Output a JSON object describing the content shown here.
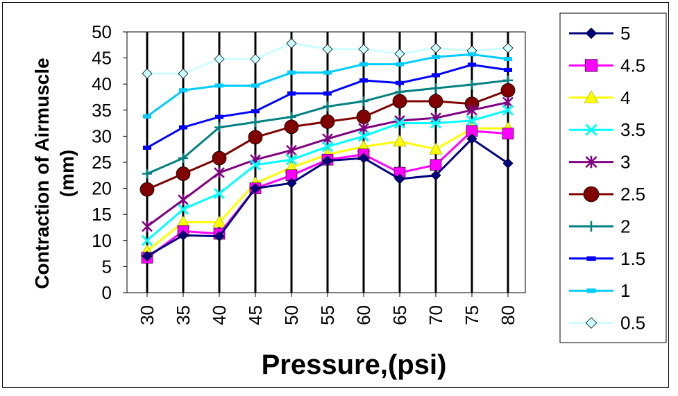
{
  "chart_data": {
    "type": "line",
    "xlabel": "Pressure,(psi)",
    "ylabel": "Contraction of Airmuscle (mm)",
    "ylabel_lines": [
      "Contraction of Airmuscle",
      "(mm)"
    ],
    "x": [
      30,
      35,
      40,
      45,
      50,
      55,
      60,
      65,
      70,
      75,
      80
    ],
    "xticks": [
      "30",
      "35",
      "40",
      "45",
      "50",
      "55",
      "60",
      "65",
      "70",
      "75",
      "80"
    ],
    "ylim": [
      0,
      50
    ],
    "yticks": [
      0,
      5,
      10,
      15,
      20,
      25,
      30,
      35,
      40,
      45,
      50
    ],
    "grid": "vertical",
    "legend_position": "right",
    "series": [
      {
        "name": "5",
        "color": "#000080",
        "marker": "diamond",
        "values": [
          7,
          11,
          10.8,
          20,
          21,
          25.3,
          25.8,
          21.8,
          22.5,
          29.5,
          24.8
        ]
      },
      {
        "name": "4.5",
        "color": "#FF00FF",
        "marker": "square",
        "values": [
          6.7,
          11.8,
          11.3,
          20,
          22.5,
          25.5,
          26.5,
          23,
          24.5,
          31,
          30.5
        ]
      },
      {
        "name": "4",
        "color": "#FFFF00",
        "marker": "triangle",
        "values": [
          8,
          13.5,
          13.5,
          21,
          24,
          26.5,
          28,
          29,
          27.5,
          31.5,
          31.5
        ]
      },
      {
        "name": "3.5",
        "color": "#00FFFF",
        "marker": "x",
        "values": [
          10,
          16,
          19,
          24.5,
          25.5,
          28,
          30,
          32.5,
          32.5,
          33,
          35
        ]
      },
      {
        "name": "3",
        "color": "#800080",
        "marker": "star",
        "values": [
          12.7,
          17.8,
          23,
          25.5,
          27.3,
          29.5,
          31.5,
          33,
          33.5,
          35,
          36.5
        ]
      },
      {
        "name": "2.5",
        "color": "#800000",
        "marker": "circle",
        "values": [
          19.8,
          22.8,
          25.8,
          29.8,
          31.8,
          32.8,
          33.7,
          36.7,
          36.7,
          36.2,
          38.8
        ]
      },
      {
        "name": "2",
        "color": "#008080",
        "marker": "plus",
        "values": [
          22.8,
          25.8,
          31.7,
          32.7,
          33.7,
          35.7,
          36.7,
          38.5,
          39.2,
          39.9,
          40.7
        ]
      },
      {
        "name": "1.5",
        "color": "#0000FF",
        "marker": "dash",
        "values": [
          27.8,
          31.7,
          33.7,
          34.8,
          38.2,
          38.2,
          40.7,
          40.2,
          41.7,
          43.7,
          42.7
        ]
      },
      {
        "name": "1",
        "color": "#00CCFF",
        "marker": "dash",
        "values": [
          33.8,
          38.8,
          39.7,
          39.7,
          42.2,
          42.2,
          43.8,
          43.8,
          45.2,
          45.7,
          44.8
        ]
      },
      {
        "name": "0.5",
        "color": "#CCFFFF",
        "marker": "diamond",
        "values": [
          42,
          42,
          44.8,
          44.8,
          47.8,
          46.7,
          46.7,
          45.8,
          46.9,
          46.4,
          46.9
        ]
      }
    ]
  }
}
